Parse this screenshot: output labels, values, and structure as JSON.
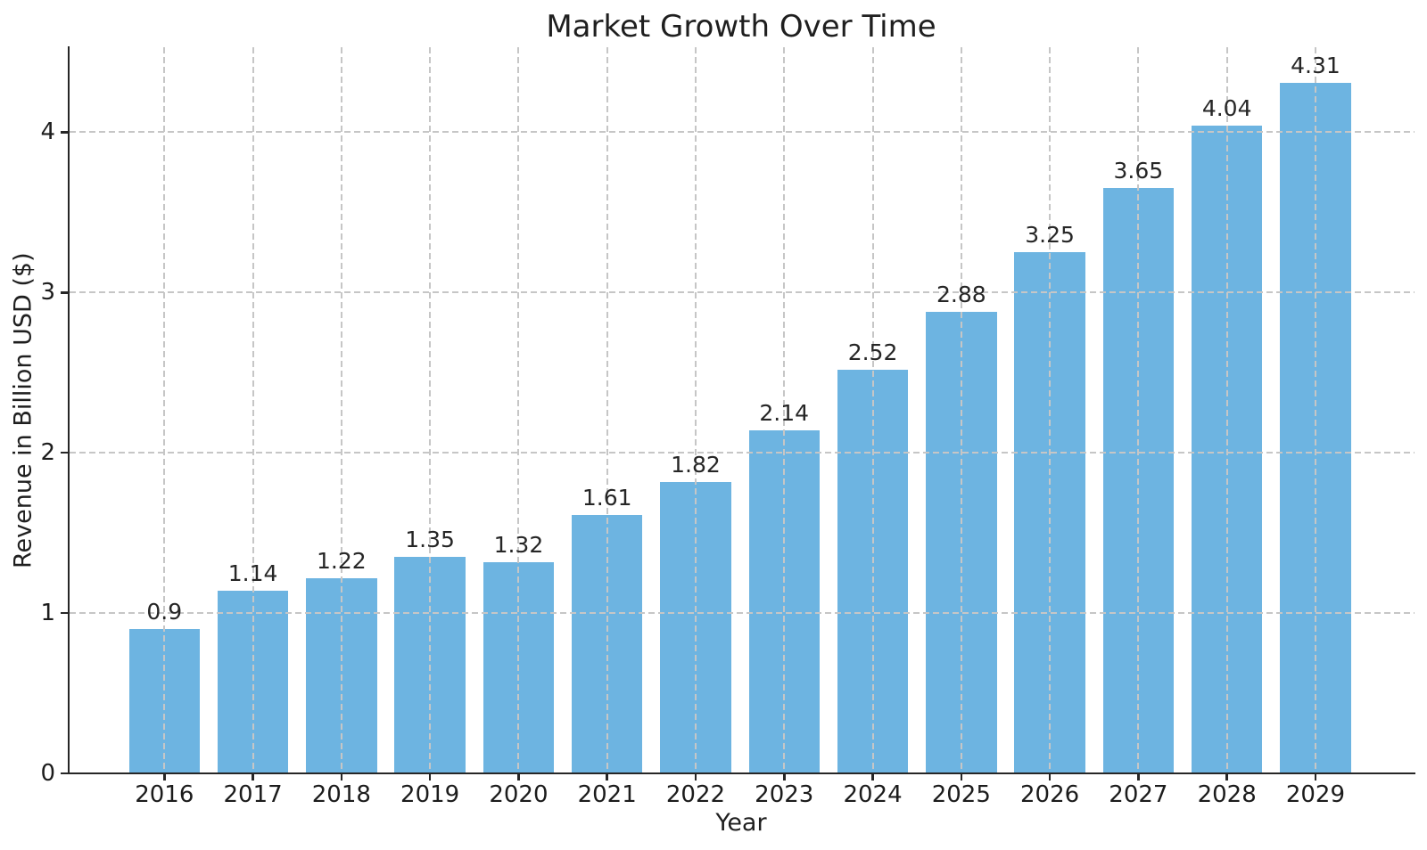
{
  "title": "Market Growth Over Time",
  "chart_data": {
    "type": "bar",
    "title": "Market Growth Over Time",
    "xlabel": "Year",
    "ylabel": "Revenue in Billion USD ($)",
    "categories": [
      "2016",
      "2017",
      "2018",
      "2019",
      "2020",
      "2021",
      "2022",
      "2023",
      "2024",
      "2025",
      "2026",
      "2027",
      "2028",
      "2029"
    ],
    "values": [
      0.9,
      1.14,
      1.22,
      1.35,
      1.32,
      1.61,
      1.82,
      2.14,
      2.52,
      2.88,
      3.25,
      3.65,
      4.04,
      4.31
    ],
    "bar_labels": [
      "0.9",
      "1.14",
      "1.22",
      "1.35",
      "1.32",
      "1.61",
      "1.82",
      "2.14",
      "2.52",
      "2.88",
      "3.25",
      "3.65",
      "4.04",
      "4.31"
    ],
    "y_ticks": [
      0,
      1,
      2,
      3,
      4
    ],
    "ylim": [
      0,
      4.53
    ],
    "grid": "dashed-both-axes-over-bars",
    "legend": "none",
    "bar_color": "#6db4e1",
    "grid_color": "#c6c6c6",
    "spine_color": "#262626",
    "text_color": "#1c1c1c",
    "background": "#ffffff"
  }
}
